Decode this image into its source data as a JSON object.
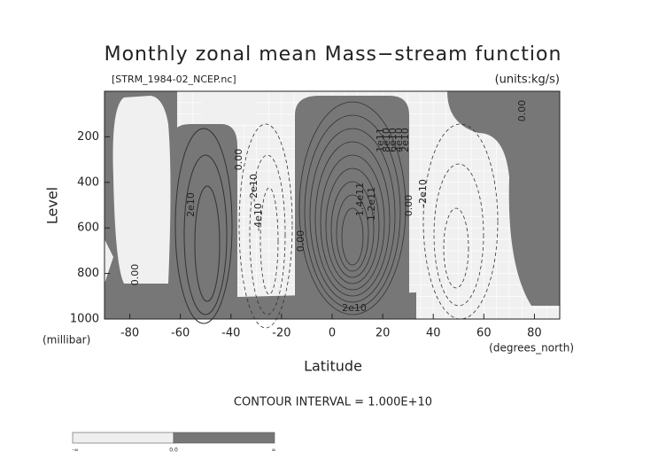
{
  "chart_data": {
    "type": "contour",
    "title": "Monthly zonal mean Mass−stream function",
    "subtitle": "[STRM_1984-02_NCEP.nc]",
    "units": "(units:kg/s)",
    "x_label": "Latitude",
    "x_unit": "(degrees_north)",
    "y_label": "Level",
    "y_unit": "(millibar)",
    "xlim": [
      -90,
      90
    ],
    "xticks": [
      -80,
      -60,
      -40,
      -20,
      0,
      20,
      40,
      60,
      80
    ],
    "ylim": [
      1000,
      0
    ],
    "yticks": [
      200,
      400,
      600,
      800,
      1000
    ],
    "contour_labels": [
      "2e10",
      "0.00",
      "0.00",
      "-2e10",
      "-4e10",
      "0.00",
      "1e11",
      "8e10",
      "6e10",
      "4e10",
      "2e10",
      "1.4e11",
      "1.2e11",
      "0.00",
      "-2e10",
      "2e10",
      "0.00"
    ],
    "footer": "CONTOUR INTERVAL = 1.000E+10",
    "colorbar_labels": [
      "-∞",
      "0.0",
      "∞"
    ],
    "colors": {
      "positive": "#777777",
      "negative": "#f0f0f0"
    }
  }
}
